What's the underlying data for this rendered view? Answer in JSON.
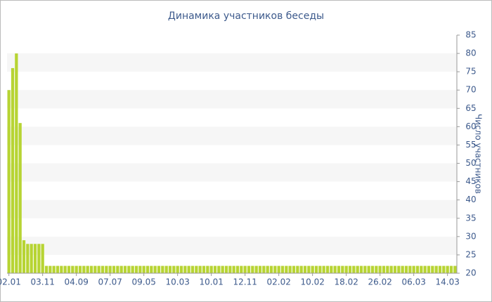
{
  "chart_data": {
    "type": "bar",
    "title": "Динамика участников беседы",
    "y_label": "Число участников",
    "categories": [
      "02.01",
      null,
      null,
      null,
      null,
      null,
      null,
      null,
      null,
      "03.11",
      null,
      null,
      null,
      null,
      null,
      null,
      null,
      null,
      "04.09",
      null,
      null,
      null,
      null,
      null,
      null,
      null,
      null,
      "07.07",
      null,
      null,
      null,
      null,
      null,
      null,
      null,
      null,
      "09.05",
      null,
      null,
      null,
      null,
      null,
      null,
      null,
      null,
      "10.03",
      null,
      null,
      null,
      null,
      null,
      null,
      null,
      null,
      "10.01",
      null,
      null,
      null,
      null,
      null,
      null,
      null,
      null,
      "12.11",
      null,
      null,
      null,
      null,
      null,
      null,
      null,
      null,
      "02.02",
      null,
      null,
      null,
      null,
      null,
      null,
      null,
      null,
      "10.02",
      null,
      null,
      null,
      null,
      null,
      null,
      null,
      null,
      "18.02",
      null,
      null,
      null,
      null,
      null,
      null,
      null,
      null,
      "26.02",
      null,
      null,
      null,
      null,
      null,
      null,
      null,
      null,
      "06.03",
      null,
      null,
      null,
      null,
      null,
      null,
      null,
      null,
      "14.03",
      null,
      null
    ],
    "values": [
      70,
      76,
      80,
      61,
      29,
      28,
      28,
      28,
      28,
      28,
      22,
      22,
      22,
      22,
      22,
      22,
      22,
      22,
      22,
      22,
      22,
      22,
      22,
      22,
      22,
      22,
      22,
      22,
      22,
      22,
      22,
      22,
      22,
      22,
      22,
      22,
      22,
      22,
      22,
      22,
      22,
      22,
      22,
      22,
      22,
      22,
      22,
      22,
      22,
      22,
      22,
      22,
      22,
      22,
      22,
      22,
      22,
      22,
      22,
      22,
      22,
      22,
      22,
      22,
      22,
      22,
      22,
      22,
      22,
      22,
      22,
      22,
      22,
      22,
      22,
      22,
      22,
      22,
      22,
      22,
      22,
      22,
      22,
      22,
      22,
      22,
      22,
      22,
      22,
      22,
      22,
      22,
      22,
      22,
      22,
      22,
      22,
      22,
      22,
      22,
      22,
      22,
      22,
      22,
      22,
      22,
      22,
      22,
      22,
      22,
      22,
      22,
      22,
      22,
      22,
      22,
      22,
      22,
      22,
      22
    ],
    "color": "#b7d433",
    "ylim": [
      20,
      85
    ],
    "yticks": [
      20,
      25,
      30,
      35,
      40,
      45,
      50,
      55,
      60,
      65,
      70,
      75,
      80,
      85
    ],
    "grid": true,
    "y_axis_side": "right"
  }
}
